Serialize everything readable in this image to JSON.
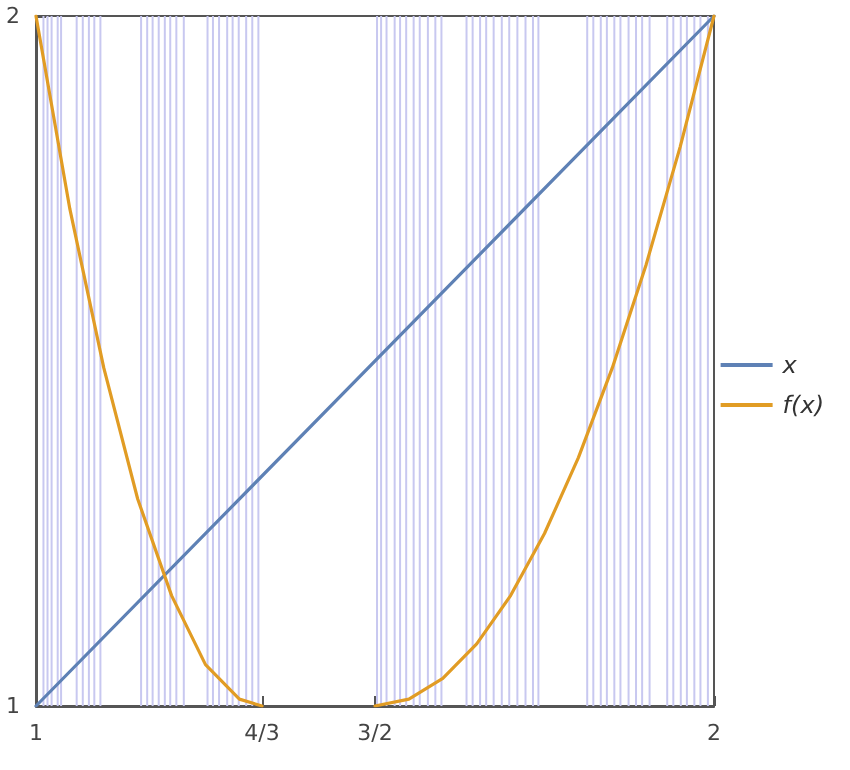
{
  "chart_data": {
    "type": "line",
    "xlim": [
      1,
      2
    ],
    "ylim": [
      1,
      2
    ],
    "xticks": [
      1,
      {
        "value": 1.3333,
        "label": "4/3"
      },
      {
        "value": 1.5,
        "label": "3/2"
      },
      2
    ],
    "yticks": [
      1,
      2
    ],
    "legend": "right",
    "grid": false,
    "marker": "none",
    "line_style": "solid",
    "series": [
      {
        "name": "x",
        "color": "#5e81b5",
        "x": [
          1,
          2
        ],
        "values": [
          1,
          2
        ]
      },
      {
        "name": "f(x)",
        "color": "#e19c24",
        "x": [
          1,
          1.05,
          1.1,
          1.15,
          1.2,
          1.25,
          1.3,
          1.3333,
          1.4,
          1.5,
          1.55,
          1.6,
          1.65,
          1.7,
          1.75,
          1.8,
          1.85,
          1.9,
          1.95,
          2
        ],
        "values": [
          2,
          1.72,
          1.49,
          1.3,
          1.16,
          1.06,
          1.01,
          1,
          null,
          1,
          1.01,
          1.04,
          1.09,
          1.16,
          1.25,
          1.36,
          1.49,
          1.64,
          1.81,
          2
        ]
      }
    ],
    "ref_lines": [
      {
        "axis": "x",
        "value": 1.011,
        "color": "#c8c8f0"
      },
      {
        "axis": "x",
        "value": 1.017,
        "color": "#c8c8f0"
      },
      {
        "axis": "x",
        "value": 1.023,
        "color": "#c8c8f0"
      },
      {
        "axis": "x",
        "value": 1.032,
        "color": "#c8c8f0"
      },
      {
        "axis": "x",
        "value": 1.037,
        "color": "#c8c8f0"
      },
      {
        "axis": "x",
        "value": 1.06,
        "color": "#c8c8f0"
      },
      {
        "axis": "x",
        "value": 1.069,
        "color": "#c8c8f0"
      },
      {
        "axis": "x",
        "value": 1.078,
        "color": "#c8c8f0"
      },
      {
        "axis": "x",
        "value": 1.086,
        "color": "#c8c8f0"
      },
      {
        "axis": "x",
        "value": 1.095,
        "color": "#c8c8f0"
      },
      {
        "axis": "x",
        "value": 1.155,
        "color": "#c8c8f0"
      },
      {
        "axis": "x",
        "value": 1.164,
        "color": "#c8c8f0"
      },
      {
        "axis": "x",
        "value": 1.172,
        "color": "#c8c8f0"
      },
      {
        "axis": "x",
        "value": 1.181,
        "color": "#c8c8f0"
      },
      {
        "axis": "x",
        "value": 1.19,
        "color": "#c8c8f0"
      },
      {
        "axis": "x",
        "value": 1.198,
        "color": "#c8c8f0"
      },
      {
        "axis": "x",
        "value": 1.207,
        "color": "#c8c8f0"
      },
      {
        "axis": "x",
        "value": 1.218,
        "color": "#c8c8f0"
      },
      {
        "axis": "x",
        "value": 1.253,
        "color": "#c8c8f0"
      },
      {
        "axis": "x",
        "value": 1.261,
        "color": "#c8c8f0"
      },
      {
        "axis": "x",
        "value": 1.27,
        "color": "#c8c8f0"
      },
      {
        "axis": "x",
        "value": 1.282,
        "color": "#c8c8f0"
      },
      {
        "axis": "x",
        "value": 1.29,
        "color": "#c8c8f0"
      },
      {
        "axis": "x",
        "value": 1.299,
        "color": "#c8c8f0"
      },
      {
        "axis": "x",
        "value": 1.31,
        "color": "#c8c8f0"
      },
      {
        "axis": "x",
        "value": 1.319,
        "color": "#c8c8f0"
      },
      {
        "axis": "x",
        "value": 1.328,
        "color": "#c8c8f0"
      },
      {
        "axis": "x",
        "value": 1.503,
        "color": "#c8c8f0"
      },
      {
        "axis": "x",
        "value": 1.509,
        "color": "#c8c8f0"
      },
      {
        "axis": "x",
        "value": 1.517,
        "color": "#c8c8f0"
      },
      {
        "axis": "x",
        "value": 1.529,
        "color": "#c8c8f0"
      },
      {
        "axis": "x",
        "value": 1.537,
        "color": "#c8c8f0"
      },
      {
        "axis": "x",
        "value": 1.546,
        "color": "#c8c8f0"
      },
      {
        "axis": "x",
        "value": 1.557,
        "color": "#c8c8f0"
      },
      {
        "axis": "x",
        "value": 1.566,
        "color": "#c8c8f0"
      },
      {
        "axis": "x",
        "value": 1.578,
        "color": "#c8c8f0"
      },
      {
        "axis": "x",
        "value": 1.589,
        "color": "#c8c8f0"
      },
      {
        "axis": "x",
        "value": 1.598,
        "color": "#c8c8f0"
      },
      {
        "axis": "x",
        "value": 1.635,
        "color": "#c8c8f0"
      },
      {
        "axis": "x",
        "value": 1.644,
        "color": "#c8c8f0"
      },
      {
        "axis": "x",
        "value": 1.655,
        "color": "#c8c8f0"
      },
      {
        "axis": "x",
        "value": 1.664,
        "color": "#c8c8f0"
      },
      {
        "axis": "x",
        "value": 1.675,
        "color": "#c8c8f0"
      },
      {
        "axis": "x",
        "value": 1.687,
        "color": "#c8c8f0"
      },
      {
        "axis": "x",
        "value": 1.698,
        "color": "#c8c8f0"
      },
      {
        "axis": "x",
        "value": 1.71,
        "color": "#c8c8f0"
      },
      {
        "axis": "x",
        "value": 1.722,
        "color": "#c8c8f0"
      },
      {
        "axis": "x",
        "value": 1.733,
        "color": "#c8c8f0"
      },
      {
        "axis": "x",
        "value": 1.741,
        "color": "#c8c8f0"
      },
      {
        "axis": "x",
        "value": 1.813,
        "color": "#c8c8f0"
      },
      {
        "axis": "x",
        "value": 1.822,
        "color": "#c8c8f0"
      },
      {
        "axis": "x",
        "value": 1.833,
        "color": "#c8c8f0"
      },
      {
        "axis": "x",
        "value": 1.842,
        "color": "#c8c8f0"
      },
      {
        "axis": "x",
        "value": 1.853,
        "color": "#c8c8f0"
      },
      {
        "axis": "x",
        "value": 1.862,
        "color": "#c8c8f0"
      },
      {
        "axis": "x",
        "value": 1.874,
        "color": "#c8c8f0"
      },
      {
        "axis": "x",
        "value": 1.885,
        "color": "#c8c8f0"
      },
      {
        "axis": "x",
        "value": 1.894,
        "color": "#c8c8f0"
      },
      {
        "axis": "x",
        "value": 1.905,
        "color": "#c8c8f0"
      },
      {
        "axis": "x",
        "value": 1.931,
        "color": "#c8c8f0"
      },
      {
        "axis": "x",
        "value": 1.94,
        "color": "#c8c8f0"
      },
      {
        "axis": "x",
        "value": 1.951,
        "color": "#c8c8f0"
      },
      {
        "axis": "x",
        "value": 1.96,
        "color": "#c8c8f0"
      },
      {
        "axis": "x",
        "value": 1.971,
        "color": "#c8c8f0"
      },
      {
        "axis": "x",
        "value": 1.98,
        "color": "#c8c8f0"
      },
      {
        "axis": "x",
        "value": 1.991,
        "color": "#c8c8f0"
      }
    ]
  }
}
